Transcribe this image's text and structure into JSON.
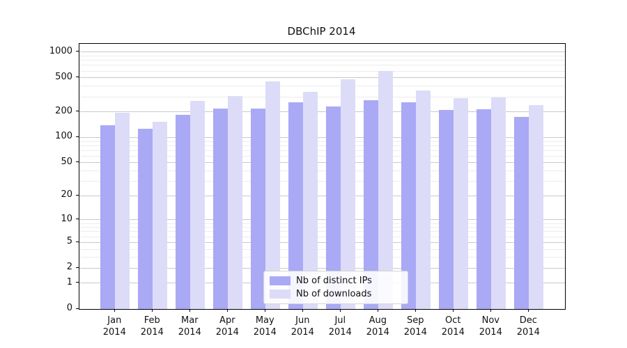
{
  "title": "DBChIP 2014",
  "colors": {
    "ips_bar": "#a9a9f5",
    "downloads_bar": "#dcdcf8",
    "axis": "#000000",
    "major_grid": "#c9c9c9",
    "minor_grid": "#ececec"
  },
  "chart_data": {
    "type": "bar",
    "title": "DBChIP 2014",
    "xlabel": "",
    "ylabel": "",
    "y_scale": "log1p",
    "ylim": [
      0,
      1200
    ],
    "grid": true,
    "legend_position": "lower center",
    "categories": [
      {
        "month": "Jan",
        "year": "2014"
      },
      {
        "month": "Feb",
        "year": "2014"
      },
      {
        "month": "Mar",
        "year": "2014"
      },
      {
        "month": "Apr",
        "year": "2014"
      },
      {
        "month": "May",
        "year": "2014"
      },
      {
        "month": "Jun",
        "year": "2014"
      },
      {
        "month": "Jul",
        "year": "2014"
      },
      {
        "month": "Aug",
        "year": "2014"
      },
      {
        "month": "Sep",
        "year": "2014"
      },
      {
        "month": "Oct",
        "year": "2014"
      },
      {
        "month": "Nov",
        "year": "2014"
      },
      {
        "month": "Dec",
        "year": "2014"
      }
    ],
    "series": [
      {
        "name": "Nb of distinct IPs",
        "color": "#a9a9f5",
        "values": [
          140,
          127,
          185,
          217,
          220,
          260,
          230,
          275,
          257,
          209,
          213,
          176
        ]
      },
      {
        "name": "Nb of downloads",
        "color": "#dcdcf8",
        "values": [
          197,
          154,
          270,
          304,
          457,
          343,
          481,
          598,
          356,
          290,
          295,
          238
        ]
      }
    ],
    "yticks": [
      0,
      1,
      2,
      5,
      10,
      20,
      50,
      100,
      200,
      500,
      1000
    ],
    "minor_gridlines": [
      3,
      4,
      6,
      7,
      8,
      9,
      30,
      40,
      60,
      70,
      80,
      90,
      300,
      400,
      600,
      700,
      800,
      900
    ]
  }
}
